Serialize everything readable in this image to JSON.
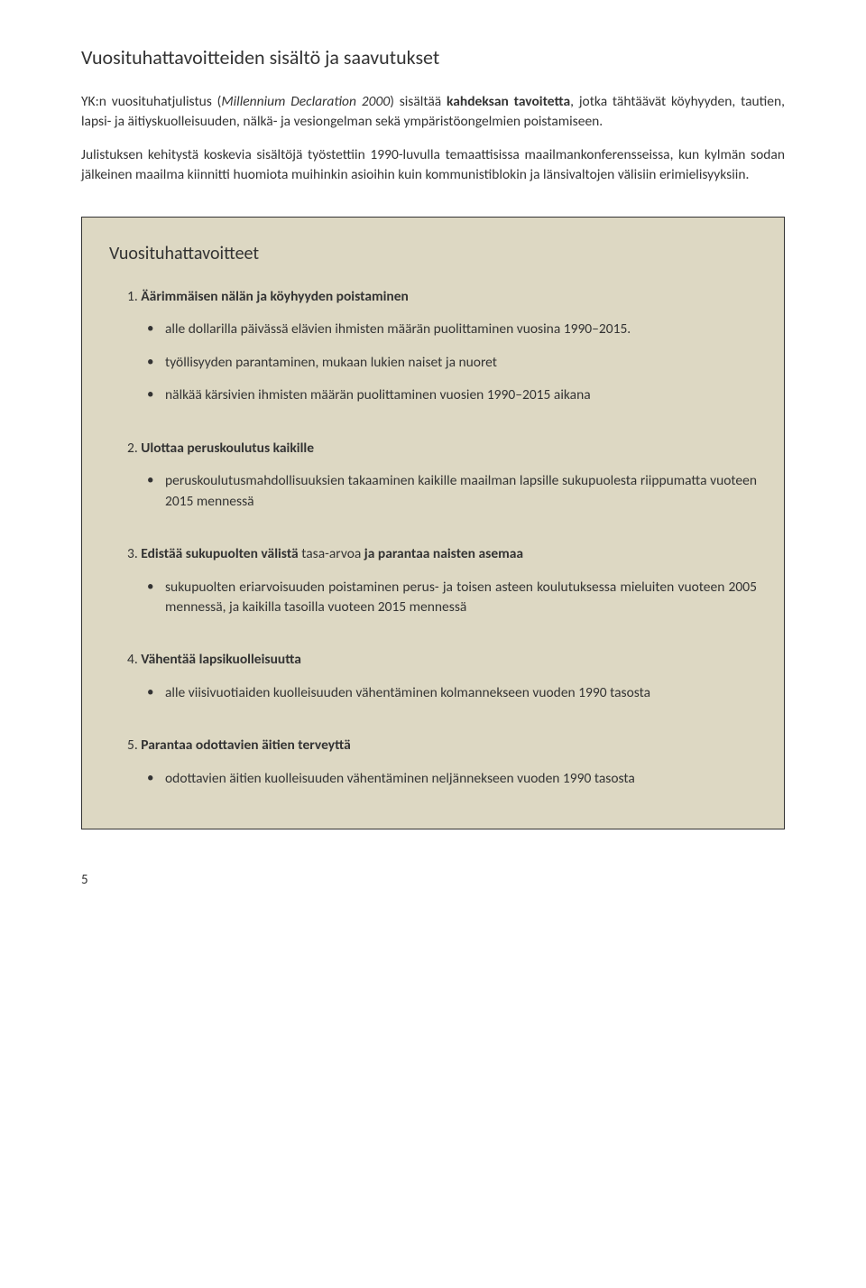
{
  "heading": "Vuosituhattavoitteiden sisältö ja saavutukset",
  "intro": {
    "p1_a": "YK:n vuosituhatjulistus (",
    "p1_i": "Millennium Declaration 2000",
    "p1_b": ") sisältää ",
    "p1_bold": "kahdeksan tavoitetta",
    "p1_c": ", jotka tähtäävät köyhyyden, tautien, lapsi- ja äitiyskuolleisuuden, nälkä- ja vesiongelman sekä ympäristöongelmien poistamiseen.",
    "p2": "Julistuksen kehitystä koskevia sisältöjä työstettiin 1990-luvulla temaattisissa maailmankonferensseissa, kun kylmän sodan jälkeinen maailma kiinnitti huomiota muihinkin asioihin kuin kommunistiblokin ja länsivaltojen välisiin erimielisyyksiin."
  },
  "box": {
    "title": "Vuosituhattavoitteet",
    "goals": [
      {
        "num": "1. ",
        "title_bold": "Äärimmäisen nälän ja köyhyyden poistaminen",
        "title_rest": "",
        "items": [
          "alle dollarilla päivässä elävien ihmisten määrän puolittaminen vuosina 1990–2015.",
          "työllisyyden parantaminen, mukaan lukien naiset ja nuoret",
          "nälkää kärsivien ihmisten määrän puolittaminen vuosien 1990–2015 aikana"
        ]
      },
      {
        "num": "2. ",
        "title_bold": "Ulottaa peruskoulutus kaikille",
        "title_rest": "",
        "items": [
          "peruskoulutusmahdollisuuksien takaaminen kaikille maailman lapsille sukupuolesta riippumatta vuoteen 2015 mennessä"
        ]
      },
      {
        "num": "3. ",
        "title_bold": "Edistää sukupuolten välistä ",
        "title_mid": "tasa-arvoa",
        "title_bold2": " ja parantaa naisten asemaa",
        "items": [
          "sukupuolten eriarvoisuuden poistaminen perus- ja toisen asteen koulutuksessa mieluiten vuoteen 2005 mennessä, ja kaikilla tasoilla vuoteen 2015 mennessä"
        ]
      },
      {
        "num": "4. ",
        "title_bold": "Vähentää lapsikuolleisuutta",
        "title_rest": "",
        "items": [
          "alle viisivuotiaiden kuolleisuuden vähentäminen kolmannekseen vuoden 1990 tasosta"
        ]
      },
      {
        "num": "5. ",
        "title_bold": "Parantaa odottavien äitien terveyttä",
        "title_rest": "",
        "items": [
          "odottavien äitien kuolleisuuden vähentäminen neljännekseen vuoden 1990 tasosta"
        ]
      }
    ]
  },
  "page_number": "5",
  "colors": {
    "box_bg": "#ddd8c3",
    "text": "#333333",
    "border": "#333333"
  }
}
